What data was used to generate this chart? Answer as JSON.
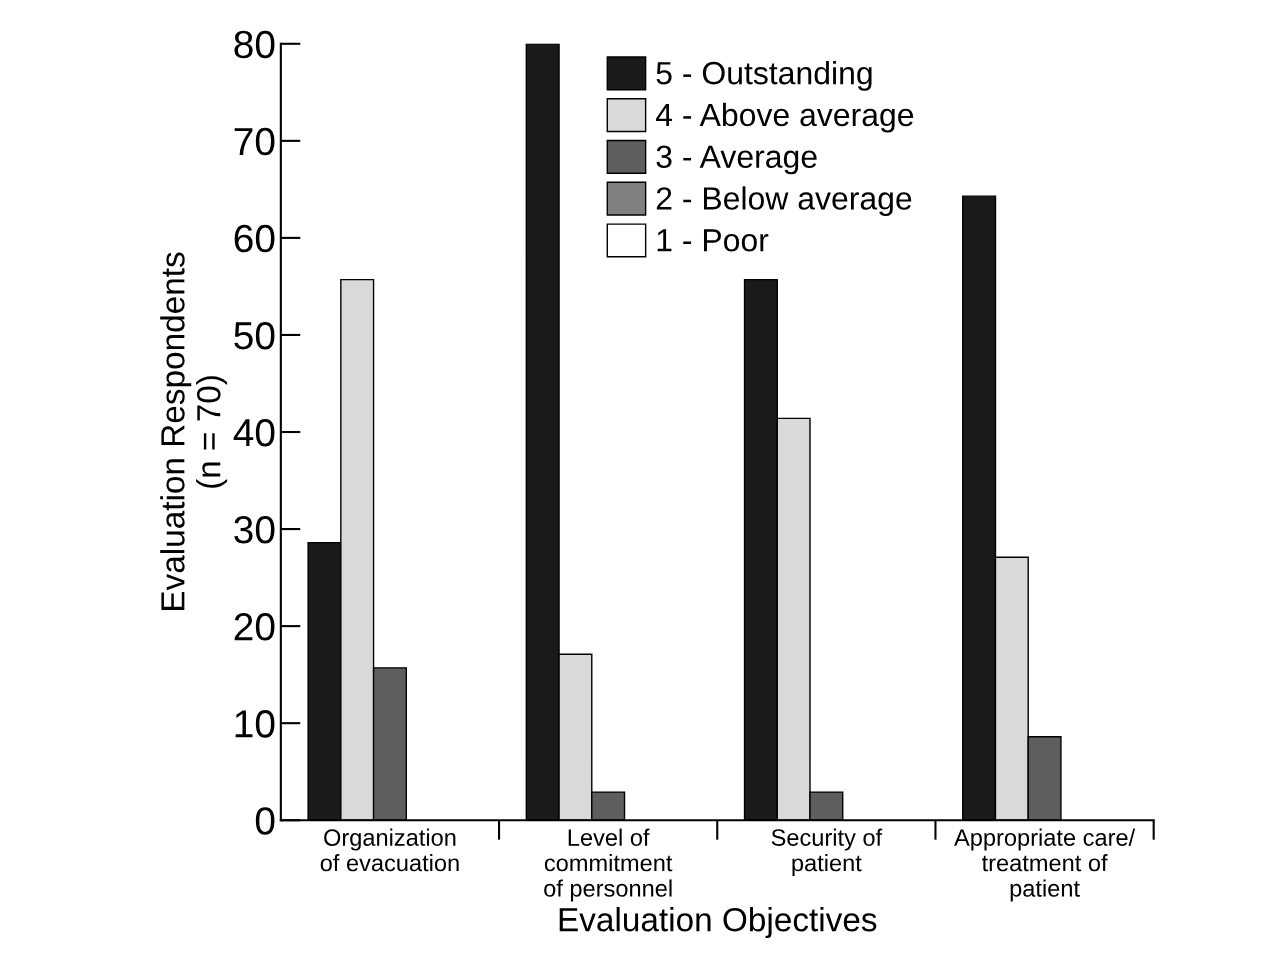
{
  "chart_data": {
    "type": "bar",
    "xlabel": "Evaluation Objectives",
    "ylabel": "Evaluation Respondents\n(n = 70)",
    "categories": [
      "Organization\nof evacuation",
      "Level of\ncommitment\nof personnel",
      "Security of\npatient",
      "Appropriate care/\ntreatment of\npatient"
    ],
    "series": [
      {
        "name": "5 - Outstanding",
        "color": "#1a1a1a",
        "values": [
          28.6,
          80,
          55.7,
          64.3
        ]
      },
      {
        "name": "4 - Above average",
        "color": "#d9d9d9",
        "values": [
          55.7,
          17.1,
          41.4,
          27.1
        ]
      },
      {
        "name": "3 - Average",
        "color": "#5e5e5e",
        "values": [
          15.7,
          2.9,
          2.9,
          8.6
        ]
      },
      {
        "name": "2 - Below average",
        "color": "#808080",
        "values": [
          0,
          0,
          0,
          0
        ]
      },
      {
        "name": "1 - Poor",
        "color": "#ffffff",
        "values": [
          0,
          0,
          0,
          0
        ]
      }
    ],
    "ylim": [
      0,
      80
    ],
    "yticks": [
      0,
      10,
      20,
      30,
      40,
      50,
      60,
      70,
      80
    ],
    "grid": false,
    "legend": "top"
  }
}
